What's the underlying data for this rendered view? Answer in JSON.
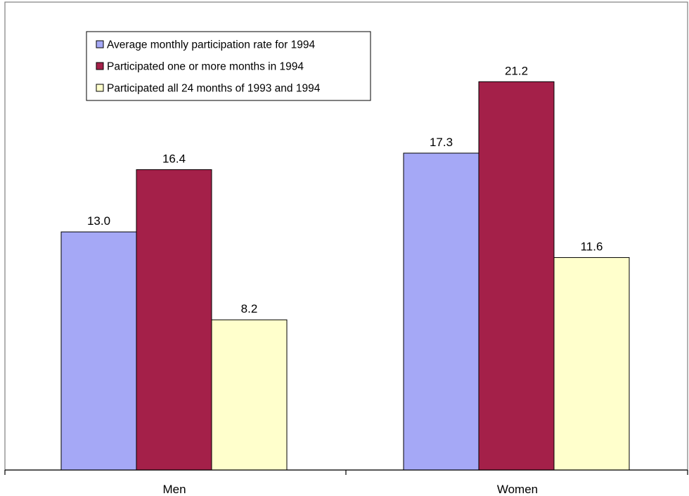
{
  "chart_data": {
    "type": "bar",
    "categories": [
      "Men",
      "Women"
    ],
    "series": [
      {
        "name": "Average monthly participation rate for 1994",
        "values": [
          13.0,
          17.3
        ],
        "labels": [
          "13.0",
          "17.3"
        ],
        "color": "#a5a8f6"
      },
      {
        "name": "Participated one or more months in 1994",
        "values": [
          16.4,
          21.2
        ],
        "labels": [
          "16.4",
          "21.2"
        ],
        "color": "#a42049"
      },
      {
        "name": "Participated all 24 months of 1993 and 1994",
        "values": [
          8.2,
          11.6
        ],
        "labels": [
          "8.2",
          "11.6"
        ],
        "color": "#ffffcc"
      }
    ],
    "ylim": [
      0,
      25.2
    ],
    "grid": false,
    "legend_position": "top-left"
  }
}
